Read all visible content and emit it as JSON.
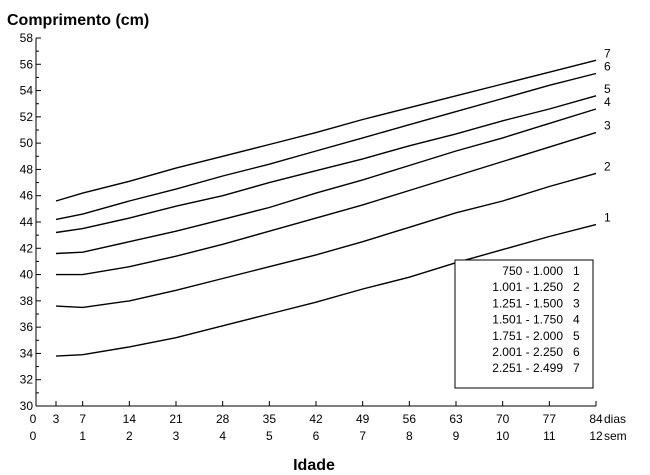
{
  "chart_data": {
    "type": "line",
    "ylabel": "Comprimento (cm)",
    "xlabel": "Idade",
    "x_unit_days": "dias",
    "x_unit_weeks": "sem",
    "ylim": [
      30,
      58
    ],
    "xlim": [
      0,
      84
    ],
    "grid": false,
    "y_ticks": [
      30,
      32,
      34,
      36,
      38,
      40,
      42,
      44,
      46,
      48,
      50,
      52,
      54,
      56,
      58
    ],
    "x_ticks_days": [
      0,
      3,
      7,
      14,
      21,
      28,
      35,
      42,
      49,
      56,
      63,
      70,
      77,
      84
    ],
    "x_ticks_weeks": [
      0,
      1,
      2,
      3,
      4,
      5,
      6,
      7,
      8,
      9,
      10,
      11,
      12
    ],
    "x": [
      3,
      7,
      14,
      21,
      28,
      35,
      42,
      49,
      56,
      63,
      70,
      77,
      84
    ],
    "series": [
      {
        "name": "1",
        "values": [
          33.8,
          33.9,
          34.5,
          35.2,
          36.1,
          37.0,
          37.9,
          38.9,
          39.8,
          40.9,
          41.9,
          42.9,
          43.8
        ]
      },
      {
        "name": "2",
        "values": [
          37.6,
          37.5,
          38.0,
          38.8,
          39.7,
          40.6,
          41.5,
          42.5,
          43.6,
          44.7,
          45.6,
          46.7,
          47.7
        ]
      },
      {
        "name": "3",
        "values": [
          40.0,
          40.0,
          40.6,
          41.4,
          42.3,
          43.3,
          44.3,
          45.3,
          46.4,
          47.5,
          48.6,
          49.7,
          50.8
        ]
      },
      {
        "name": "4",
        "values": [
          41.6,
          41.7,
          42.5,
          43.3,
          44.2,
          45.1,
          46.2,
          47.2,
          48.3,
          49.4,
          50.4,
          51.5,
          52.6
        ]
      },
      {
        "name": "5",
        "values": [
          43.2,
          43.5,
          44.3,
          45.2,
          46.0,
          47.0,
          47.9,
          48.8,
          49.8,
          50.7,
          51.7,
          52.6,
          53.6
        ]
      },
      {
        "name": "6",
        "values": [
          44.2,
          44.6,
          45.6,
          46.5,
          47.5,
          48.4,
          49.4,
          50.4,
          51.4,
          52.4,
          53.4,
          54.4,
          55.3
        ]
      },
      {
        "name": "7",
        "values": [
          45.6,
          46.2,
          47.1,
          48.1,
          49.0,
          49.9,
          50.8,
          51.8,
          52.7,
          53.6,
          54.5,
          55.4,
          56.3
        ]
      }
    ],
    "legend_placement": "bottom-right",
    "legend": [
      {
        "range": "750 - 1.000",
        "id": "1"
      },
      {
        "range": "1.001 - 1.250",
        "id": "2"
      },
      {
        "range": "1.251 - 1.500",
        "id": "3"
      },
      {
        "range": "1.501 - 1.750",
        "id": "4"
      },
      {
        "range": "1.751 - 2.000",
        "id": "5"
      },
      {
        "range": "2.001 - 2.250",
        "id": "6"
      },
      {
        "range": "2.251 - 2.499",
        "id": "7"
      }
    ]
  }
}
